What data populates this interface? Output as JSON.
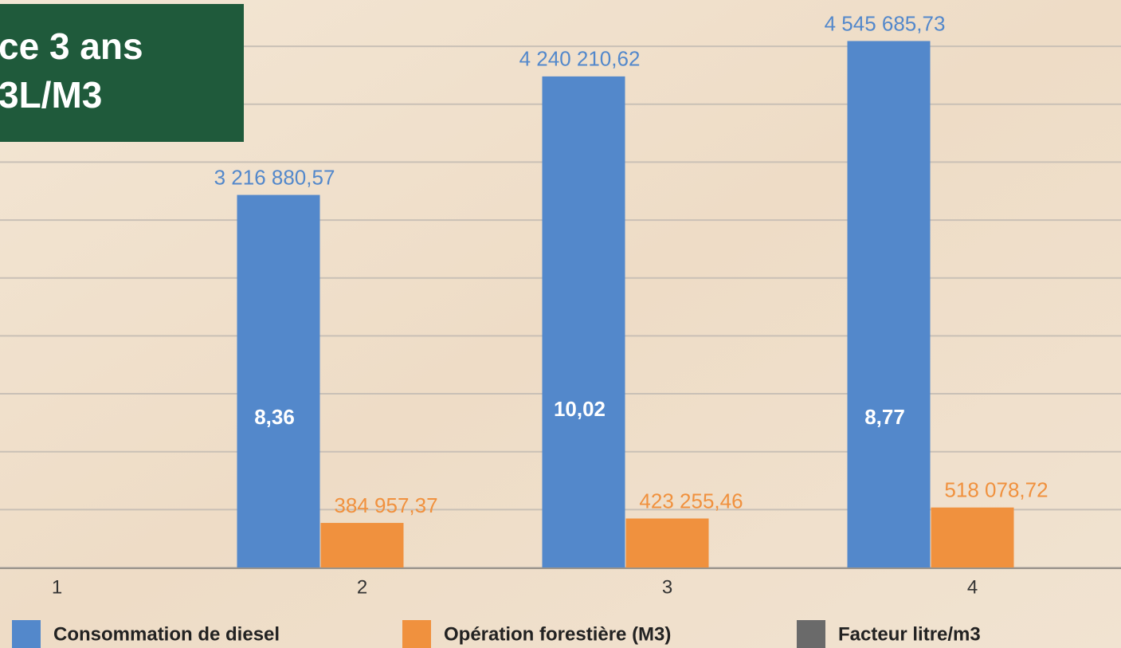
{
  "chart_data": {
    "type": "bar",
    "title_lines": [
      "ce 3 ans",
      "3L/M3"
    ],
    "categories": [
      "1",
      "2",
      "3",
      "4"
    ],
    "series": [
      {
        "name": "Consommation de diesel",
        "color": "#5388cb",
        "values": [
          null,
          3216880.57,
          4240210.62,
          4545685.73
        ],
        "value_labels": [
          null,
          "3 216 880,57",
          "4 240 210,62",
          "4 545 685,73"
        ]
      },
      {
        "name": "Opération forestière (M3)",
        "color": "#f0913e",
        "values": [
          null,
          384957.37,
          423255.46,
          518078.72
        ],
        "value_labels": [
          null,
          "384 957,37",
          "423 255,46",
          "518 078,72"
        ]
      },
      {
        "name": "Facteur litre/m3",
        "color": "#6a6a6a",
        "values": [
          null,
          8.36,
          10.02,
          8.77
        ],
        "value_labels": [
          null,
          "8,36",
          "10,02",
          "8,77"
        ]
      }
    ],
    "ylim": [
      0,
      4900000
    ],
    "yticks": [
      0,
      500000,
      1000000,
      1500000,
      2000000,
      2500000,
      3000000,
      3500000,
      4000000,
      4500000
    ],
    "show_ytick_labels": false,
    "grid": true,
    "legend": "bottom"
  }
}
